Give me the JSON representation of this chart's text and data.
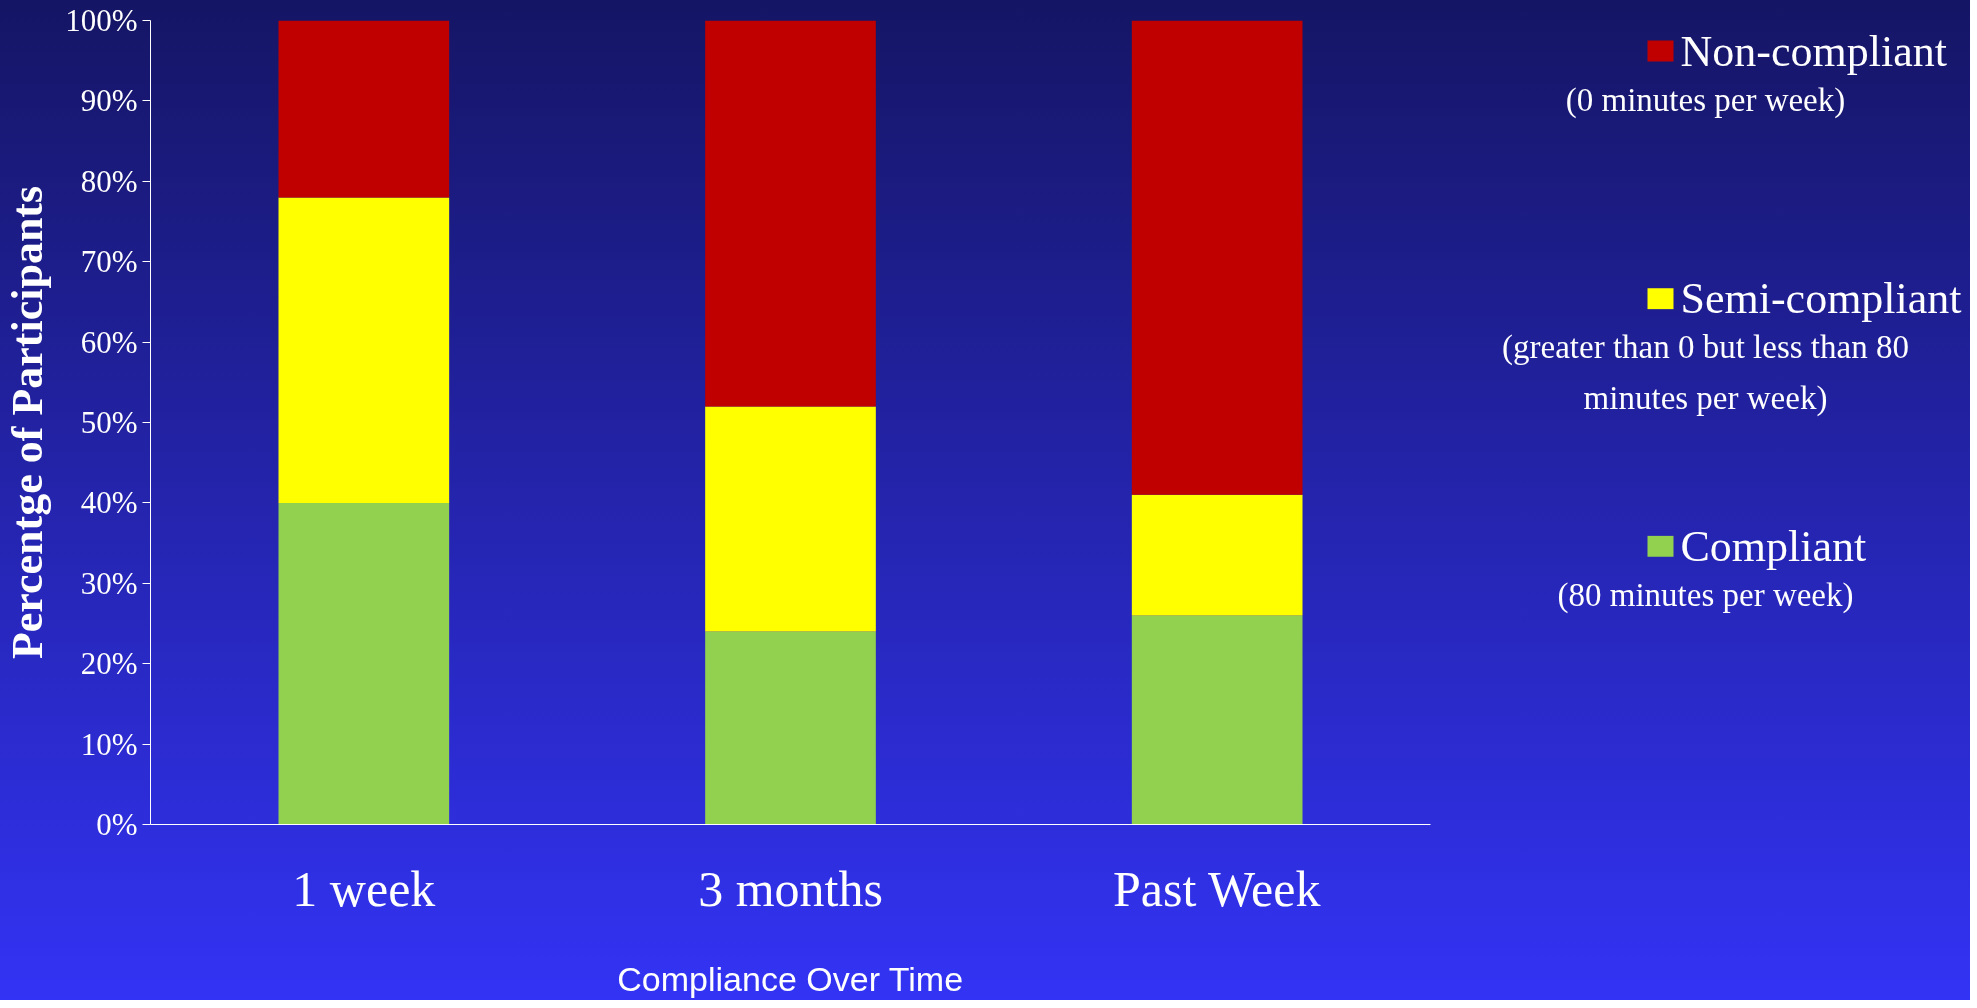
{
  "chart_data": {
    "type": "bar",
    "stacked": true,
    "xlabel": "Compliance Over Time",
    "ylabel": "Percentge of Participants",
    "categories": [
      "1 week",
      "3 months",
      "Past Week"
    ],
    "series": [
      {
        "name": "Compliant",
        "color": "#92d050",
        "values": [
          40,
          24,
          26
        ]
      },
      {
        "name": "Semi-compliant",
        "color": "#ffff00",
        "values": [
          38,
          28,
          15
        ]
      },
      {
        "name": "Non-compliant",
        "color": "#c00000",
        "values": [
          22,
          48,
          59
        ]
      }
    ],
    "annotations": [
      "(80 minutes per week)",
      "(greater than 0 but less than 80 minutes per week)",
      "(0 minutes per week)"
    ],
    "ylim": [
      0,
      100
    ],
    "yticks": [
      {
        "value": 0,
        "label": "0%"
      },
      {
        "value": 10,
        "label": "10%"
      },
      {
        "value": 20,
        "label": "20%"
      },
      {
        "value": 30,
        "label": "30%"
      },
      {
        "value": 40,
        "label": "40%"
      },
      {
        "value": 50,
        "label": "50%"
      },
      {
        "value": 60,
        "label": "60%"
      },
      {
        "value": 70,
        "label": "70%"
      },
      {
        "value": 80,
        "label": "80%"
      },
      {
        "value": 90,
        "label": "90%"
      },
      {
        "value": 100,
        "label": "100%"
      }
    ],
    "grid": false,
    "legend": "right"
  }
}
